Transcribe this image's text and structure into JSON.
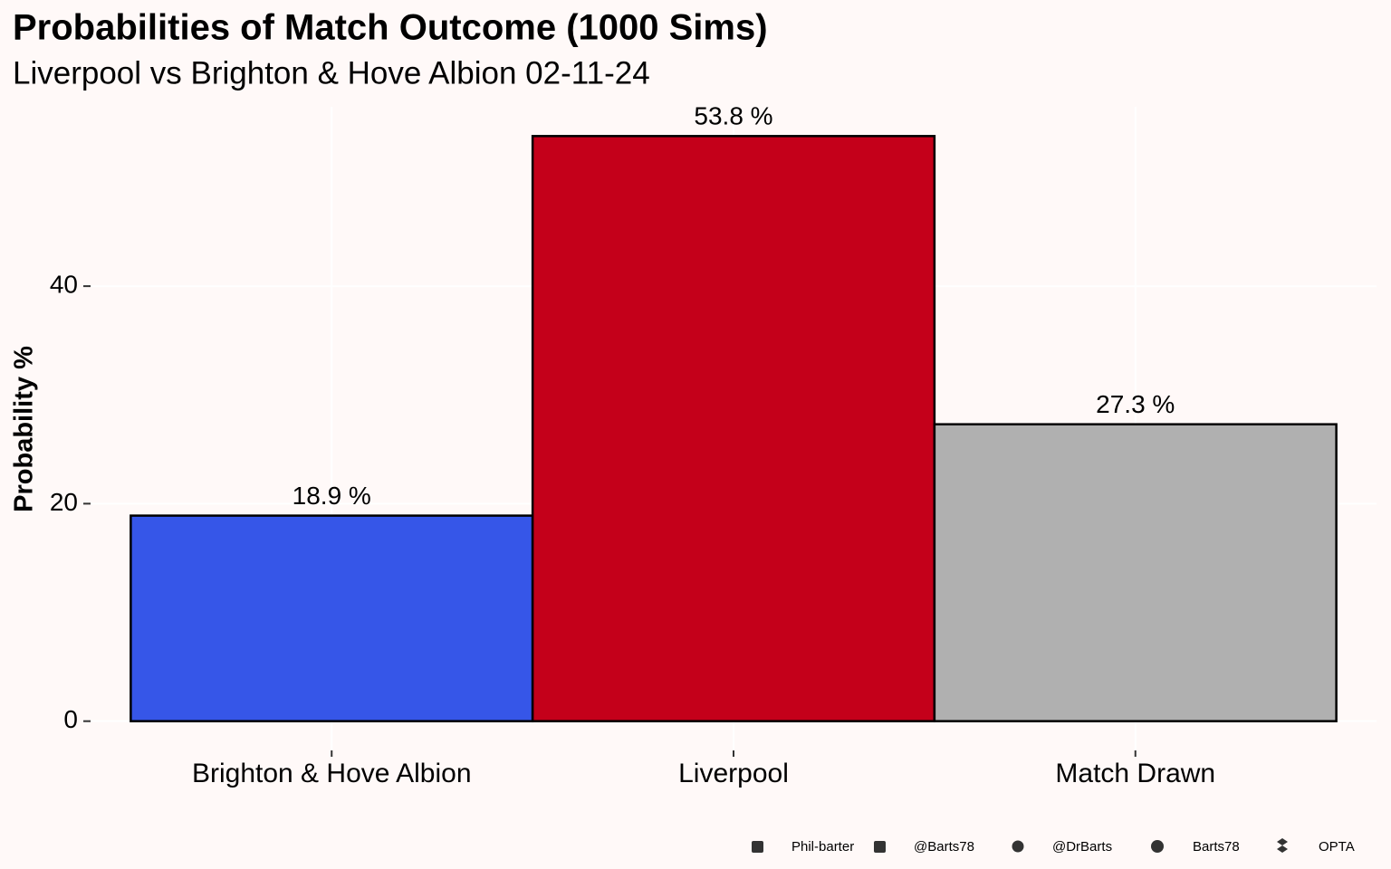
{
  "chart_data": {
    "type": "bar",
    "title": "Probabilities of Match Outcome (1000 Sims)",
    "subtitle": "Liverpool vs Brighton & Hove Albion 02-11-24",
    "y_label": "Probability %",
    "categories": [
      "Brighton & Hove Albion",
      "Liverpool",
      "Match Drawn"
    ],
    "values": [
      18.9,
      53.8,
      27.3
    ],
    "value_labels": [
      "18.9  %",
      "53.8  %",
      "27.3  %"
    ],
    "colors": [
      "#3656e8",
      "#c4001a",
      "#b0b0b0"
    ],
    "ylim": [
      -2.69,
      56.49
    ],
    "yticks": [
      0,
      20,
      40
    ],
    "grid": true,
    "caption": [
      "Phil-barter",
      "@Barts78",
      "@DrBarts",
      "Barts78",
      "OPTA"
    ]
  }
}
